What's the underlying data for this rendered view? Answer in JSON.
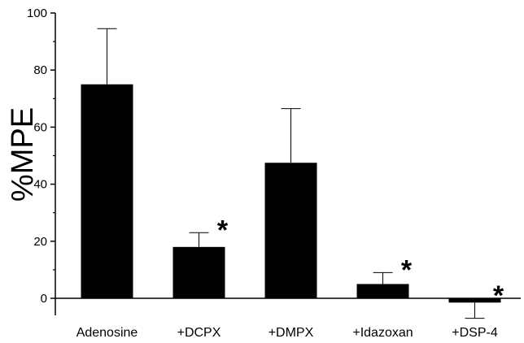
{
  "chart_data": {
    "type": "bar",
    "categories": [
      "Adenosine",
      "+DCPX",
      "+DMPX",
      "+Idazoxan",
      "+DSP-4"
    ],
    "values": [
      75,
      18,
      47.5,
      5,
      -1.5
    ],
    "errors": [
      19.5,
      5,
      19,
      4,
      5.5
    ],
    "significance": [
      "",
      "*",
      "",
      "*",
      "*"
    ],
    "title": "",
    "xlabel": "",
    "ylabel": "%MPE",
    "ylim": [
      -6,
      100
    ],
    "yticks": [
      0,
      20,
      40,
      60,
      80,
      100
    ],
    "grid": false,
    "bar_color": "#000000",
    "error_bar_color": "#000000"
  }
}
